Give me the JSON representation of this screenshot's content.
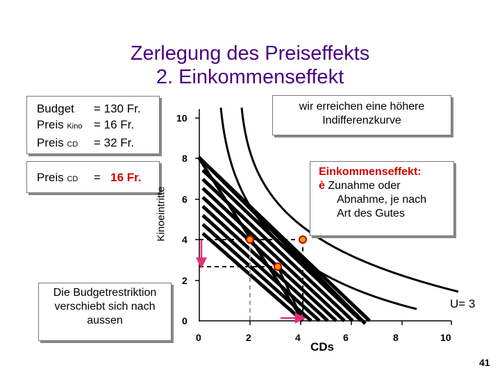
{
  "title_line1": "Zerlegung des Preiseffekts",
  "title_line2": "2. Einkommenseffekt",
  "budget_box": {
    "budget_label": "Budget",
    "budget_value": "= 130 Fr.",
    "kino_label": "Preis",
    "kino_sub": "Kino",
    "kino_value": "=  16 Fr.",
    "cd_label": "Preis",
    "cd_sub": "CD",
    "cd_value": "=  32 Fr."
  },
  "new_price_box": {
    "label": "Preis",
    "sub": "CD",
    "eq": "=",
    "value": "16 Fr."
  },
  "shift_note": [
    "Die Budgetrestriktion",
    "verschiebt sich nach",
    "aussen"
  ],
  "higher_curve_note": [
    "wir erreichen eine höhere",
    "Indifferenzkurve"
  ],
  "income_effect_note": {
    "heading": "Einkommenseffekt:",
    "arrow": "è",
    "lines": [
      "Zunahme oder",
      "Abnahme, je nach",
      "Art des Gutes"
    ]
  },
  "axes": {
    "y_label": "Kinoeintritte",
    "x_label": "CDs",
    "y_ticks": [
      "10",
      "8",
      "6",
      "4",
      "2",
      "0"
    ],
    "x_ticks": [
      "0",
      "2",
      "4",
      "6",
      "8",
      "10"
    ]
  },
  "utility_label": "U= 3",
  "page_number": "41",
  "colors": {
    "title": "#4b0082",
    "accent": "#d00000",
    "marker": "#ff9900",
    "arrow": "#e0307a"
  }
}
